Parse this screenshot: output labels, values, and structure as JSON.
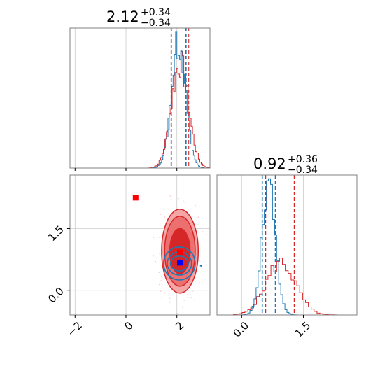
{
  "colors": {
    "red": "#d62728",
    "blue": "#1f77b4",
    "red_fill_outer": "#f4a6a6",
    "red_fill_mid": "#ec7070",
    "red_fill_inner": "#d62728",
    "grid": "#cccccc",
    "spine": "#808080",
    "truth_red": "#ff0000",
    "truth_blue": "#0000ff"
  },
  "chart_data": [
    {
      "type": "histogram",
      "panel": "top-left",
      "title_value": "2.12",
      "title_plus": "+0.34",
      "title_minus": "−0.34",
      "xlim": [
        -2.2,
        3.3
      ],
      "grid": true,
      "vlines_red": [
        1.78,
        2.46
      ],
      "vlines_blue": [
        1.78,
        2.36
      ]
    },
    {
      "type": "scatter-contour",
      "panel": "bottom-left",
      "xlim": [
        -2.2,
        3.3
      ],
      "ylim": [
        -0.6,
        2.8
      ],
      "xticks": [
        -2,
        0,
        2
      ],
      "xtick_labels": [
        "−2",
        "0",
        "2"
      ],
      "yticks": [
        0.0,
        1.5
      ],
      "ytick_labels": [
        "0.0",
        "1.5"
      ],
      "grid": true,
      "markers": [
        {
          "x": 0.38,
          "y": 2.25,
          "color": "red"
        },
        {
          "x": 2.12,
          "y": 0.92,
          "color": "red"
        },
        {
          "x": 2.12,
          "y": 0.67,
          "color": "blue"
        }
      ],
      "red_contour": {
        "cx": 2.12,
        "cy": 0.95,
        "rx": [
          0.4,
          0.6,
          0.72
        ],
        "ry": [
          0.55,
          0.85,
          1.02
        ]
      },
      "blue_contour": {
        "cx": 2.1,
        "cy": 0.65,
        "rx": [
          0.35,
          0.48,
          0.62
        ],
        "ry": [
          0.18,
          0.28,
          0.4
        ]
      }
    },
    {
      "type": "histogram",
      "panel": "bottom-right",
      "title_value": "0.92",
      "title_plus": "+0.36",
      "title_minus": "−0.34",
      "xlim": [
        -0.6,
        2.8
      ],
      "xticks": [
        0.0,
        1.5
      ],
      "xtick_labels": [
        "0.0",
        "1.5"
      ],
      "grid": true,
      "vlines_red": [
        0.58,
        1.28
      ],
      "vlines_blue": [
        0.5,
        0.82
      ]
    }
  ]
}
